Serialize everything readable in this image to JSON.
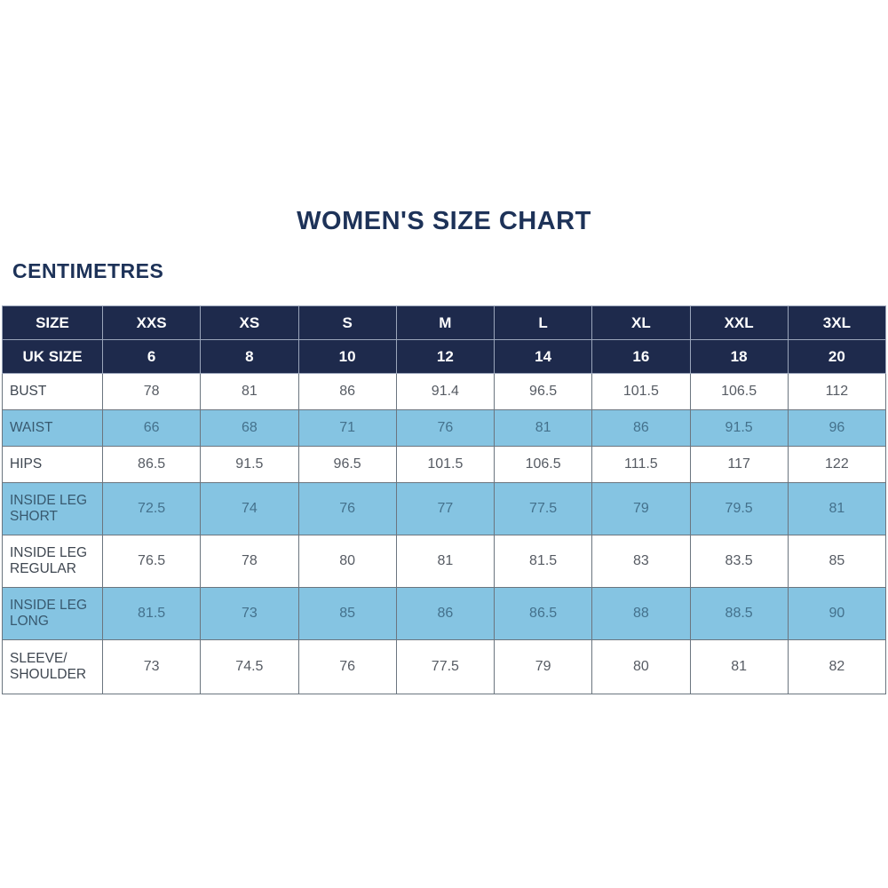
{
  "page": {
    "title": "WOMEN'S SIZE CHART",
    "units_label": "CENTIMETRES"
  },
  "colors": {
    "header_navy": "#1e2a4c",
    "title_navy": "#1d3258",
    "row_light_blue": "#85c4e2",
    "row_white": "#ffffff",
    "text_on_white": "#565b63",
    "text_on_blue": "#44718c",
    "border_grey": "#6b757f"
  },
  "chart_data": {
    "type": "table",
    "title": "WOMEN'S SIZE CHART",
    "units": "CENTIMETRES",
    "size_header_label": "SIZE",
    "uk_size_header_label": "UK SIZE",
    "sizes": [
      "XXS",
      "XS",
      "S",
      "M",
      "L",
      "XL",
      "XXL",
      "3XL"
    ],
    "uk_sizes": [
      "6",
      "8",
      "10",
      "12",
      "14",
      "16",
      "18",
      "20"
    ],
    "rows": [
      {
        "label": "BUST",
        "values": [
          "78",
          "81",
          "86",
          "91.4",
          "96.5",
          "101.5",
          "106.5",
          "112"
        ]
      },
      {
        "label": "WAIST",
        "values": [
          "66",
          "68",
          "71",
          "76",
          "81",
          "86",
          "91.5",
          "96"
        ]
      },
      {
        "label": "HIPS",
        "values": [
          "86.5",
          "91.5",
          "96.5",
          "101.5",
          "106.5",
          "111.5",
          "117",
          "122"
        ]
      },
      {
        "label": "INSIDE LEG SHORT",
        "values": [
          "72.5",
          "74",
          "76",
          "77",
          "77.5",
          "79",
          "79.5",
          "81"
        ]
      },
      {
        "label": "INSIDE LEG REGULAR",
        "values": [
          "76.5",
          "78",
          "80",
          "81",
          "81.5",
          "83",
          "83.5",
          "85"
        ]
      },
      {
        "label": "INSIDE LEG LONG",
        "values": [
          "81.5",
          "73",
          "85",
          "86",
          "86.5",
          "88",
          "88.5",
          "90"
        ]
      },
      {
        "label": "SLEEVE/ SHOULDER",
        "values": [
          "73",
          "74.5",
          "76",
          "77.5",
          "79",
          "80",
          "81",
          "82"
        ]
      }
    ]
  }
}
